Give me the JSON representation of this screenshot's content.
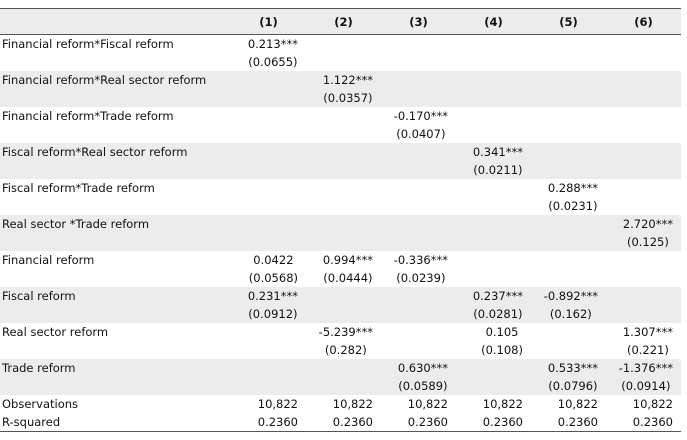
{
  "table": {
    "columns": [
      "(1)",
      "(2)",
      "(3)",
      "(4)",
      "(5)",
      "(6)"
    ],
    "rows": [
      {
        "label": "Financial reform*Fiscal reform",
        "cells": [
          [
            "0.213***",
            "(0.0655)"
          ],
          null,
          null,
          null,
          null,
          null
        ]
      },
      {
        "label": "Financial reform*Real sector reform",
        "cells": [
          null,
          [
            "1.122***",
            "(0.0357)"
          ],
          null,
          null,
          null,
          null
        ]
      },
      {
        "label": "Financial reform*Trade reform",
        "cells": [
          null,
          null,
          [
            "-0.170***",
            "(0.0407)"
          ],
          null,
          null,
          null
        ]
      },
      {
        "label": "Fiscal reform*Real sector reform",
        "cells": [
          null,
          null,
          null,
          [
            "0.341***",
            "(0.0211)"
          ],
          null,
          null
        ]
      },
      {
        "label": "Fiscal reform*Trade reform",
        "cells": [
          null,
          null,
          null,
          null,
          [
            "0.288***",
            "(0.0231)"
          ],
          null
        ]
      },
      {
        "label": "Real sector *Trade reform",
        "cells": [
          null,
          null,
          null,
          null,
          null,
          [
            "2.720***",
            "(0.125)"
          ]
        ]
      },
      {
        "label": "Financial reform",
        "cells": [
          [
            "0.0422",
            "(0.0568)"
          ],
          [
            "0.994***",
            "(0.0444)"
          ],
          [
            "-0.336***",
            "(0.0239)"
          ],
          null,
          null,
          null
        ]
      },
      {
        "label": "Fiscal reform",
        "cells": [
          [
            "0.231***",
            "(0.0912)"
          ],
          null,
          null,
          [
            "0.237***",
            "(0.0281)"
          ],
          [
            "-0.892***",
            "(0.162)"
          ],
          null
        ]
      },
      {
        "label": "Real sector reform",
        "cells": [
          null,
          [
            "-5.239***",
            "(0.282)"
          ],
          null,
          [
            "0.105",
            "(0.108)"
          ],
          null,
          [
            "1.307***",
            "(0.221)"
          ]
        ]
      },
      {
        "label": "Trade reform",
        "cells": [
          null,
          null,
          [
            "0.630***",
            "(0.0589)"
          ],
          null,
          [
            "0.533***",
            "(0.0796)"
          ],
          [
            "-1.376***",
            "(0.0914)"
          ]
        ]
      },
      {
        "label": "Observations",
        "cells": [
          "10,822",
          "10,822",
          "10,822",
          "10,822",
          "10,822",
          "10,822"
        ]
      },
      {
        "label": "R-squared",
        "cells": [
          "0.2360",
          "0.2360",
          "0.2360",
          "0.2360",
          "0.2360",
          "0.2360"
        ]
      }
    ]
  }
}
